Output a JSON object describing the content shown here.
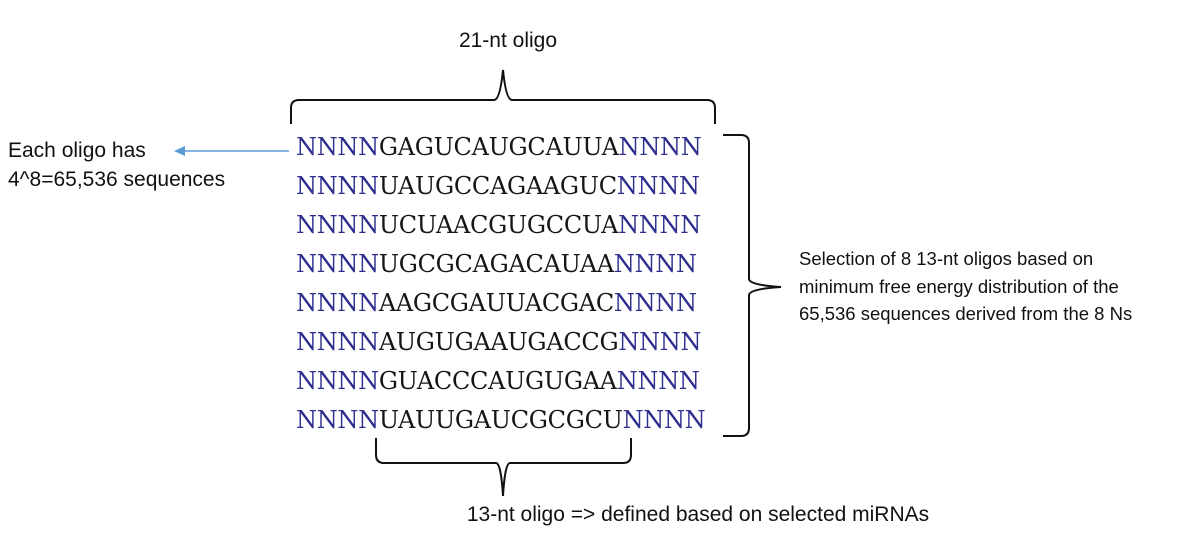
{
  "top_label": "21-nt oligo",
  "bottom_label": "13-nt oligo => defined based on selected miRNAs",
  "left_note": [
    "Each oligo has",
    "4^8=65,536 sequences"
  ],
  "right_note": [
    "Selection of 8 13-nt oligos based on",
    "minimum free energy distribution of the",
    "65,536 sequences derived from the 8 Ns"
  ],
  "sequences": [
    {
      "left": "NNNN",
      "core": "GAGUCAUGCAUUA",
      "right": "NNNN"
    },
    {
      "left": "NNNN",
      "core": "UAUGCCAGAAGUC",
      "right": "NNNN"
    },
    {
      "left": "NNNN",
      "core": "UCUAACGUGCCUA",
      "right": "NNNN"
    },
    {
      "left": "NNNN",
      "core": "UGCGCAGACAUAA",
      "right": "NNNN"
    },
    {
      "left": "NNNN",
      "core": "AAGCGAUUACGAC",
      "right": "NNNN"
    },
    {
      "left": "NNNN",
      "core": "AUGUGAAUGACCG",
      "right": "NNNN"
    },
    {
      "left": "NNNN",
      "core": "GUACCCAUGUGAA",
      "right": "NNNN"
    },
    {
      "left": "NNNN",
      "core": "UAUUGAUCGCGCU",
      "right": "NNNN"
    }
  ],
  "colors": {
    "flank": "#2e2e8f",
    "core": "#161616",
    "arrow": "#5b9bd5",
    "brace": "#111111"
  }
}
